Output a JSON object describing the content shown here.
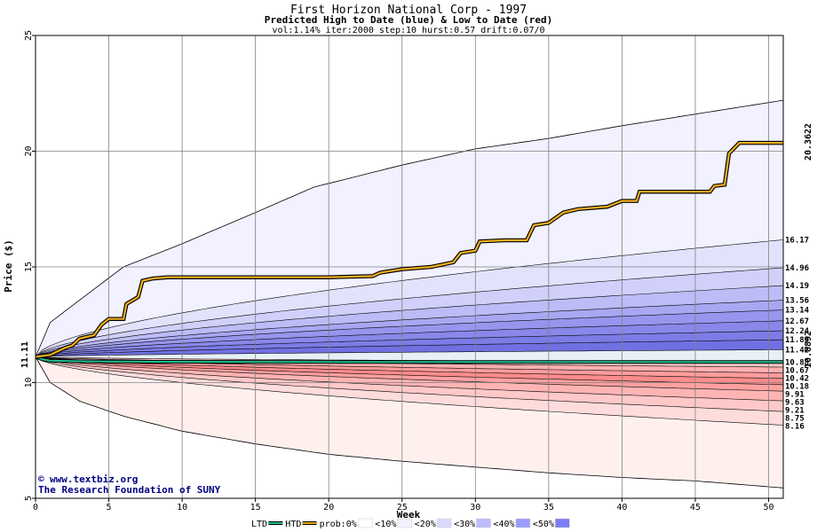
{
  "chart_data": {
    "type": "area",
    "title": "First Horizon National Corp - 1997",
    "subtitle": "Predicted High to Date (blue) &  Low to Date (red)",
    "params": "vol:1.14% iter:2000 step:10 hurst:0.57 drift:0.07/0",
    "xlabel": "Week",
    "ylabel": "Price ($)",
    "xlim": [
      0,
      51
    ],
    "ylim": [
      5,
      25
    ],
    "xticks": [
      "0",
      "5",
      "10",
      "15",
      "20",
      "25",
      "30",
      "35",
      "40",
      "45",
      "50"
    ],
    "yticks": [
      "5",
      "10",
      "15",
      "20",
      "25"
    ],
    "start_price_label": "11.11",
    "htd_final_label": "20.3622",
    "ltd_final_label": "10.8892",
    "grid": true,
    "credit_line1": "www.textbiz.org",
    "credit_line2": "The Research Foundation of SUNY",
    "envelope_upper": [
      [
        0,
        11.11
      ],
      [
        1,
        12.6
      ],
      [
        6,
        15.0
      ],
      [
        10,
        16.0
      ],
      [
        15,
        17.35
      ],
      [
        19,
        18.45
      ],
      [
        25,
        19.4
      ],
      [
        30,
        20.1
      ],
      [
        35,
        20.55
      ],
      [
        40,
        21.1
      ],
      [
        45,
        21.6
      ],
      [
        51,
        22.2
      ]
    ],
    "envelope_lower": [
      [
        0,
        11.11
      ],
      [
        1,
        10.0
      ],
      [
        3,
        9.2
      ],
      [
        6,
        8.55
      ],
      [
        10,
        7.9
      ],
      [
        15,
        7.35
      ],
      [
        20,
        6.9
      ],
      [
        25,
        6.6
      ],
      [
        30,
        6.35
      ],
      [
        35,
        6.1
      ],
      [
        40,
        5.9
      ],
      [
        45,
        5.75
      ],
      [
        51,
        5.45
      ]
    ],
    "high_quantiles": [
      {
        "label": "16.17",
        "value": 16.17
      },
      {
        "label": "14.96",
        "value": 14.96
      },
      {
        "label": "14.19",
        "value": 14.19
      },
      {
        "label": "13.56",
        "value": 13.56
      },
      {
        "label": "13.14",
        "value": 13.14
      },
      {
        "label": "12.67",
        "value": 12.67
      },
      {
        "label": "12.24",
        "value": 12.24
      },
      {
        "label": "11.85",
        "value": 11.85
      },
      {
        "label": "11.42",
        "value": 11.42
      }
    ],
    "low_quantiles": [
      {
        "label": "10.88",
        "value": 10.88
      },
      {
        "label": "10.67",
        "value": 10.67
      },
      {
        "label": "10.42",
        "value": 10.42
      },
      {
        "label": "10.18",
        "value": 10.18
      },
      {
        "label": "9.91",
        "value": 9.91
      },
      {
        "label": "9.63",
        "value": 9.63
      },
      {
        "label": "9.21",
        "value": 9.21
      },
      {
        "label": "8.75",
        "value": 8.75
      },
      {
        "label": "8.16",
        "value": 8.16
      }
    ],
    "htd_path": [
      [
        0,
        11.11
      ],
      [
        1,
        11.2
      ],
      [
        1.5,
        11.35
      ],
      [
        2,
        11.5
      ],
      [
        2.5,
        11.6
      ],
      [
        3,
        11.9
      ],
      [
        4,
        12.05
      ],
      [
        4.5,
        12.5
      ],
      [
        5,
        12.75
      ],
      [
        6,
        12.75
      ],
      [
        6.2,
        13.4
      ],
      [
        7,
        13.7
      ],
      [
        7.3,
        14.4
      ],
      [
        8,
        14.5
      ],
      [
        9,
        14.55
      ],
      [
        20,
        14.55
      ],
      [
        23,
        14.6
      ],
      [
        23.5,
        14.75
      ],
      [
        25,
        14.9
      ],
      [
        27,
        15.0
      ],
      [
        28.5,
        15.2
      ],
      [
        29,
        15.6
      ],
      [
        30,
        15.7
      ],
      [
        30.3,
        16.1
      ],
      [
        32,
        16.15
      ],
      [
        33.5,
        16.15
      ],
      [
        34,
        16.8
      ],
      [
        35,
        16.9
      ],
      [
        36,
        17.35
      ],
      [
        37,
        17.5
      ],
      [
        39,
        17.6
      ],
      [
        40,
        17.85
      ],
      [
        41,
        17.85
      ],
      [
        41.2,
        18.25
      ],
      [
        46,
        18.25
      ],
      [
        46.3,
        18.5
      ],
      [
        47,
        18.55
      ],
      [
        47.3,
        19.9
      ],
      [
        48,
        20.36
      ],
      [
        51,
        20.36
      ]
    ],
    "ltd_path": [
      [
        0,
        11.11
      ],
      [
        0.5,
        11.0
      ],
      [
        1,
        10.95
      ],
      [
        3,
        10.92
      ],
      [
        8,
        10.9
      ],
      [
        20,
        10.89
      ],
      [
        51,
        10.89
      ]
    ],
    "legend": [
      {
        "label": "LTD",
        "swatch": "#1fbf8f"
      },
      {
        "label": "HTD",
        "swatch": "#e8a800"
      },
      {
        "label": "prob:0%",
        "swatch": "#ffffff"
      },
      {
        "label": "<10%",
        "swatch": "#f1f1ff"
      },
      {
        "label": "<20%",
        "swatch": "#d9d9ff"
      },
      {
        "label": "<30%",
        "swatch": "#bdbdff"
      },
      {
        "label": "<40%",
        "swatch": "#9c9cff"
      },
      {
        "label": "<50%",
        "swatch": "#7d7df5"
      }
    ],
    "colors": {
      "htd": "#f0b020",
      "ltd": "#1fbf8f",
      "blue_bands": [
        "#f1f1ff",
        "#e2e2fc",
        "#d0d0fa",
        "#bcbcf6",
        "#a8a8f2",
        "#9696ee",
        "#8888ea",
        "#7c7ce6",
        "#7070e2"
      ],
      "red_bands": [
        "#ffc6c6",
        "#ffb0b0",
        "#ff9c9c",
        "#ff8c8c",
        "#ffa0a0",
        "#ffb4b4",
        "#ffc8c8",
        "#ffdcdc",
        "#fff0ee"
      ]
    }
  }
}
